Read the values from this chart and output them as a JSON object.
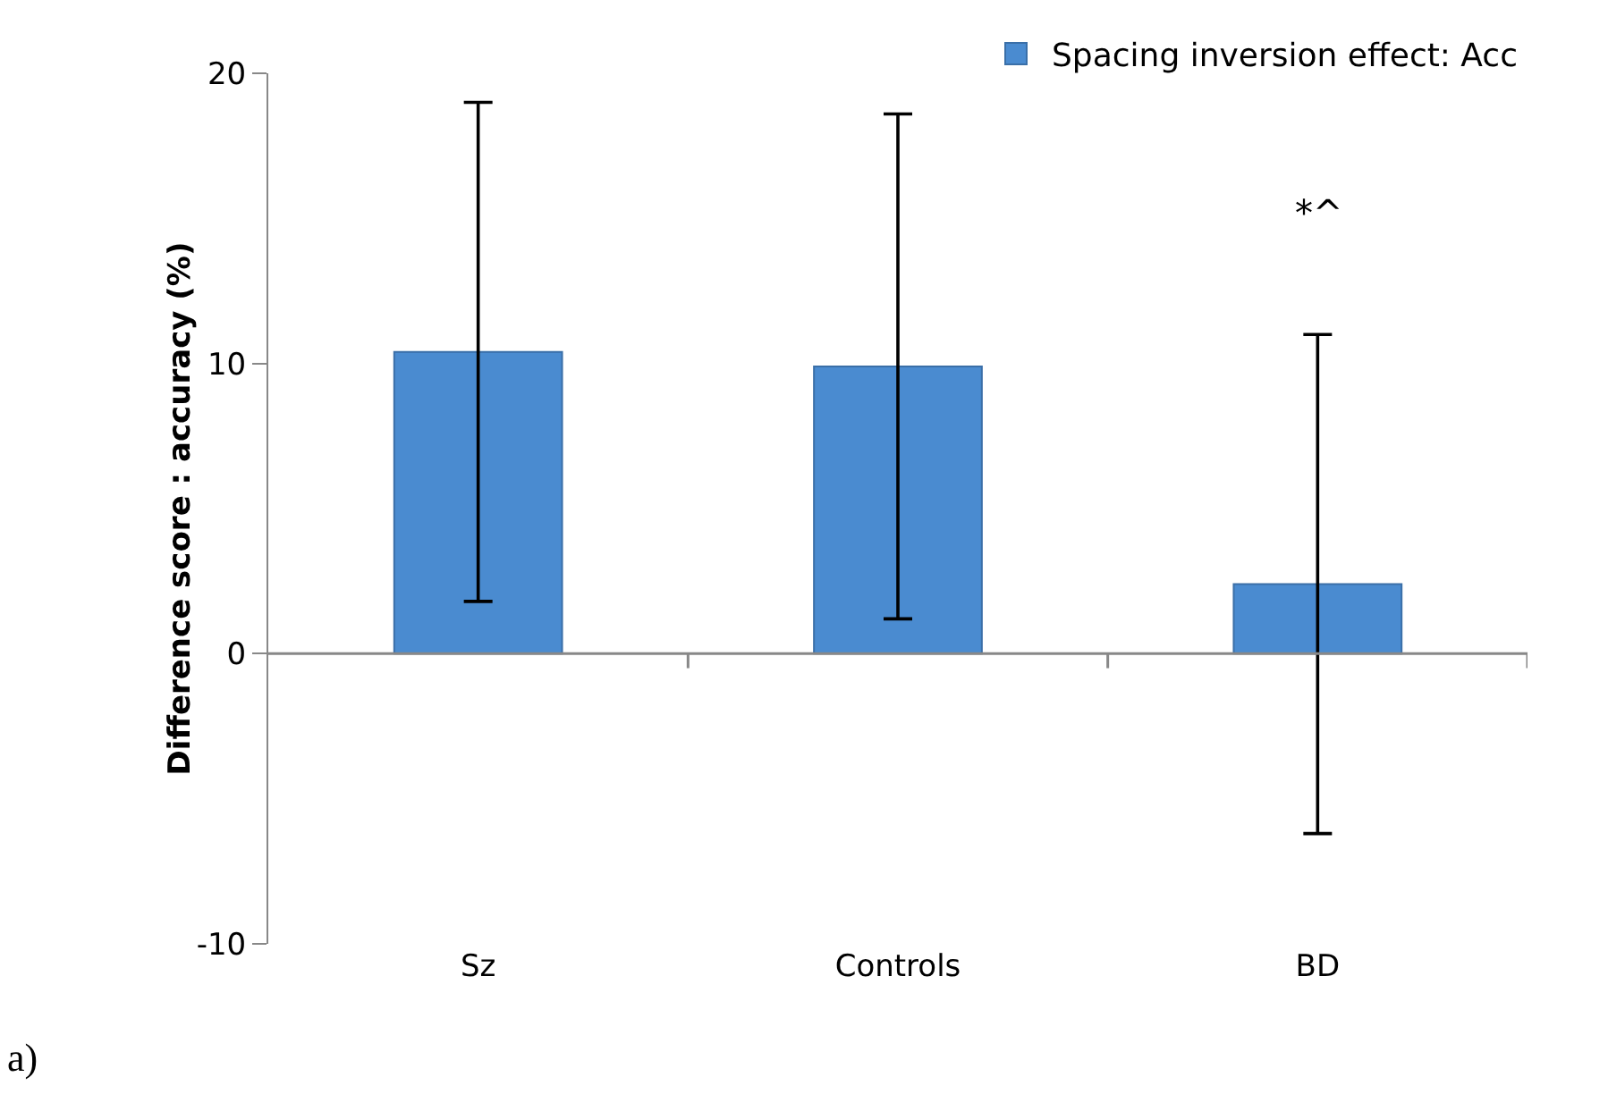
{
  "chart_data": {
    "type": "bar",
    "ylabel": "Difference score : accuracy (%)",
    "categories": [
      "Sz",
      "Controls",
      "BD"
    ],
    "series": [
      {
        "name": "Spacing inversion effect: Acc",
        "color": "#4a8bd0",
        "values": [
          10.4,
          9.9,
          2.4
        ],
        "errors": [
          8.6,
          8.7,
          8.6
        ]
      }
    ],
    "ylim": [
      -10,
      20
    ],
    "yticks": [
      -10,
      0,
      10,
      20
    ],
    "legend": "top right",
    "annotations": [
      "*^",
      "a)"
    ]
  }
}
